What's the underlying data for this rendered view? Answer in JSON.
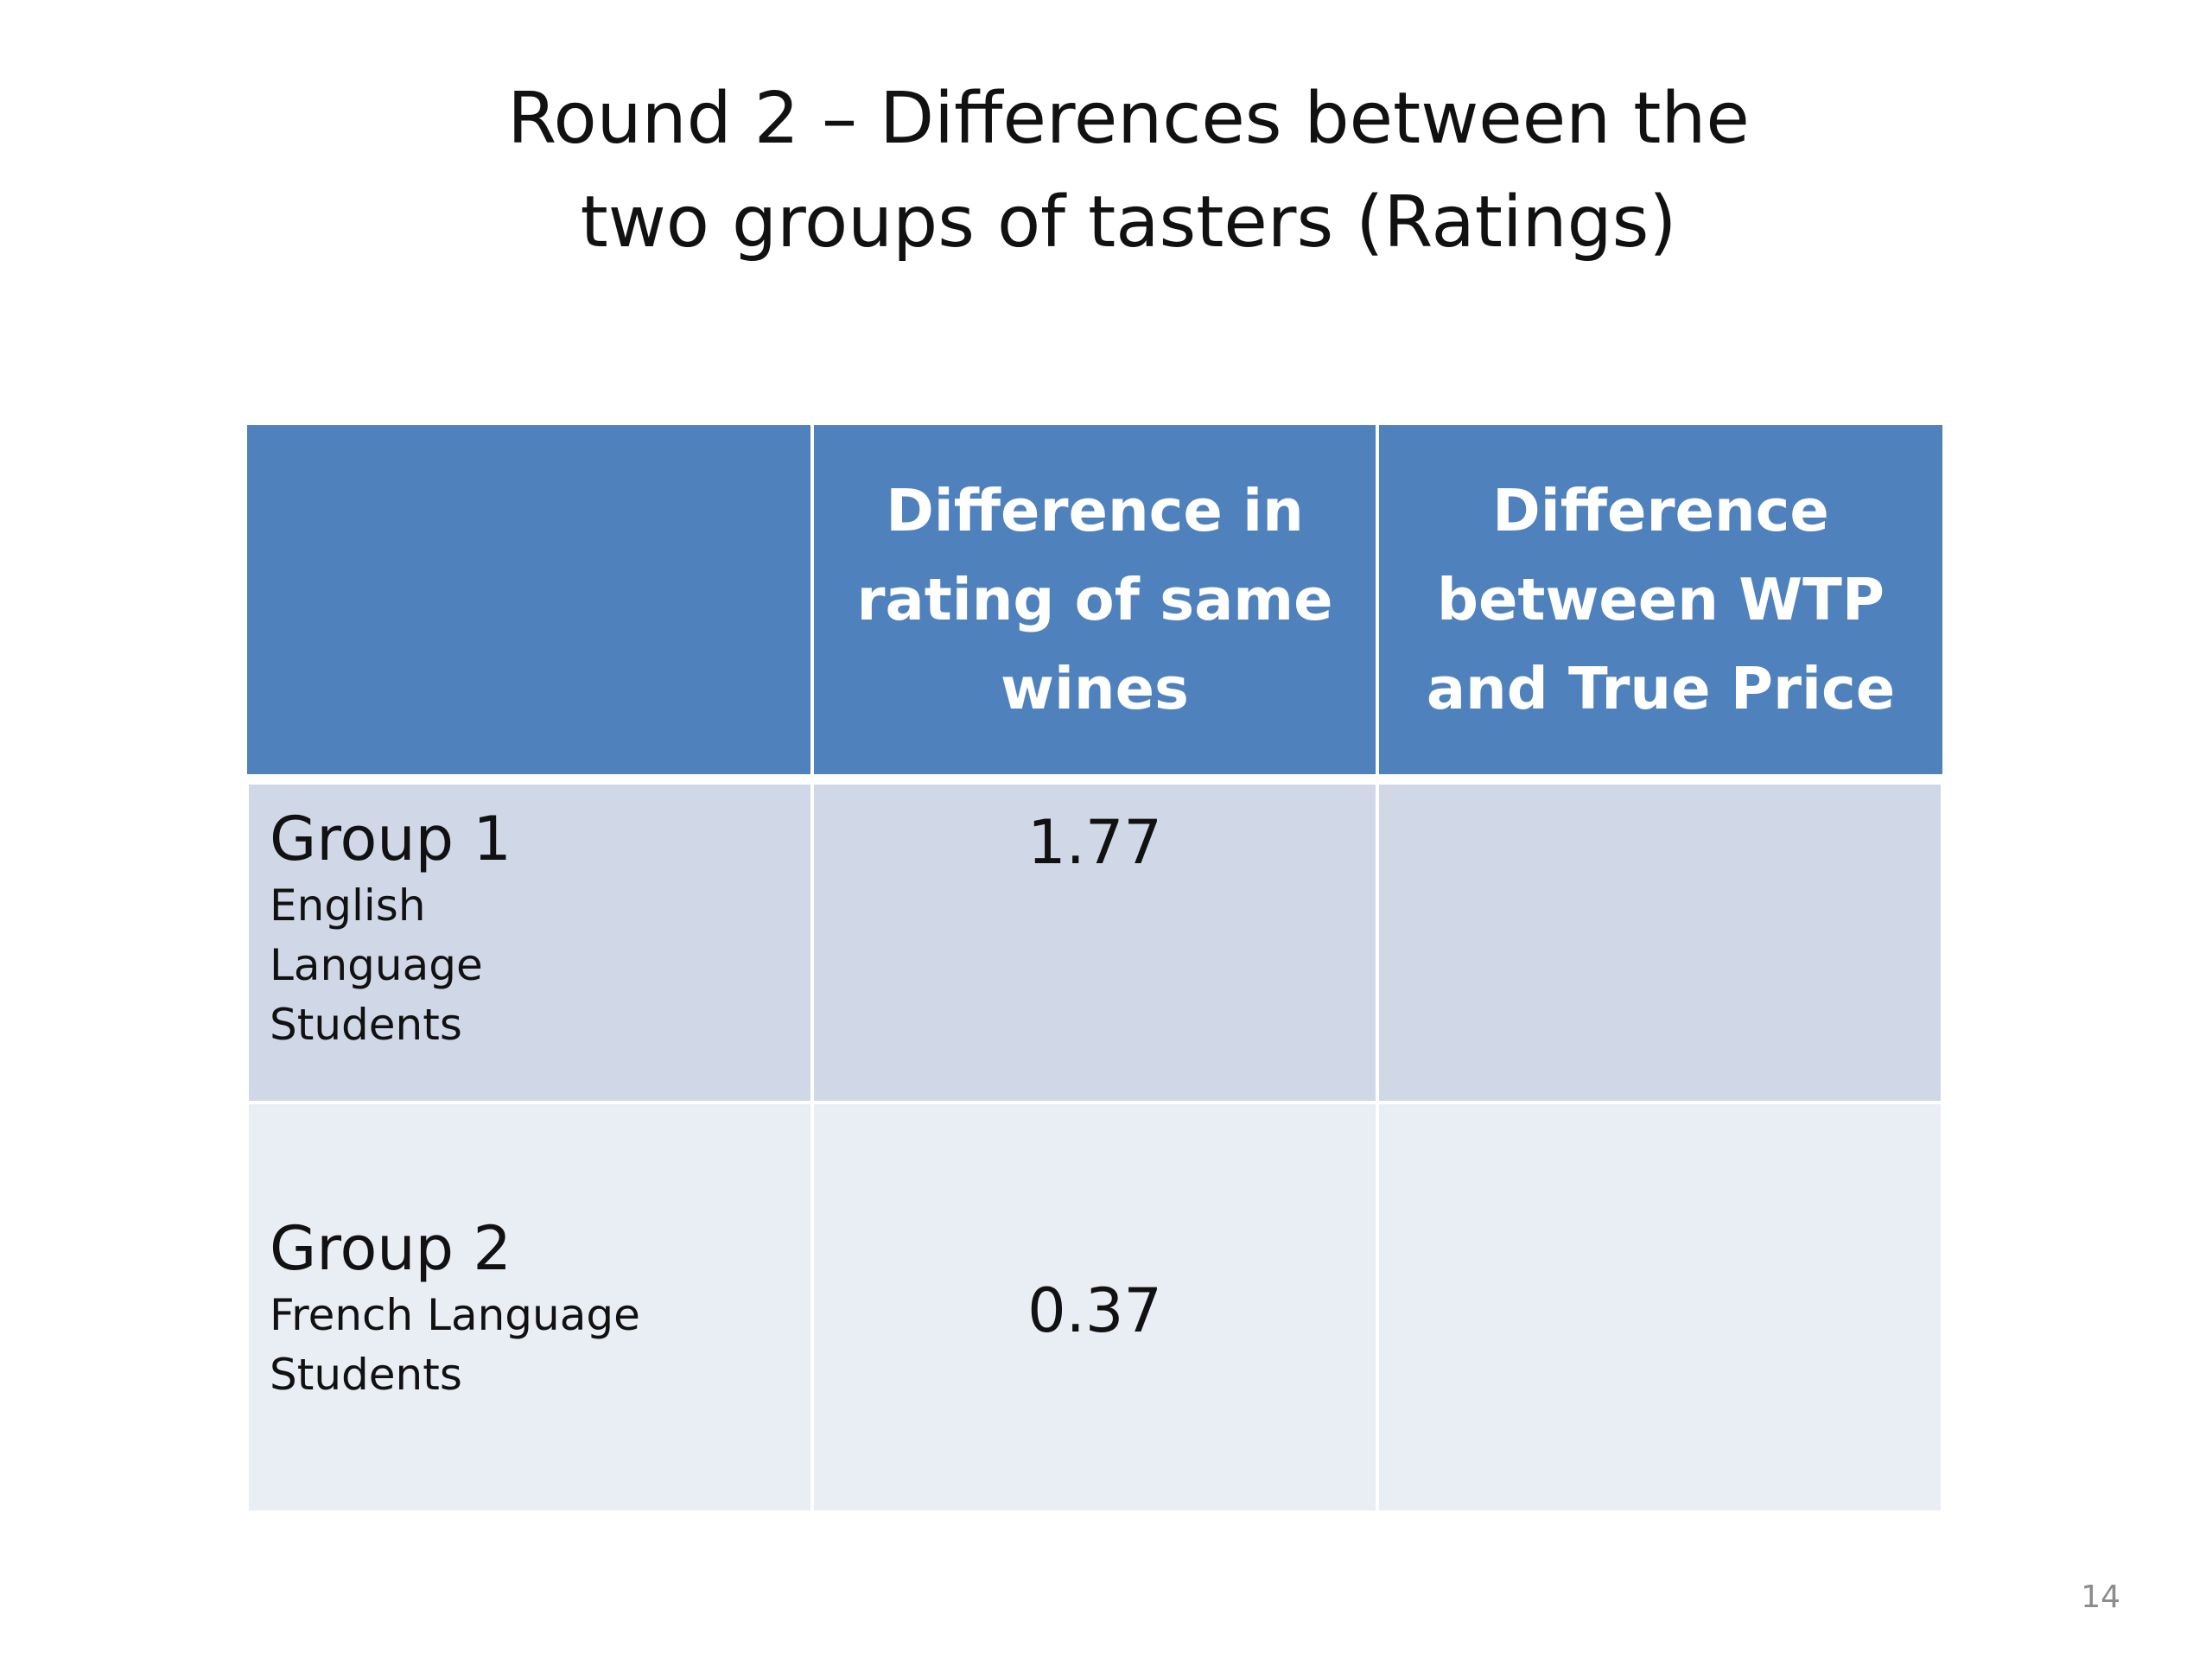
{
  "slide": {
    "title_line1": "Round 2 – Differences between the",
    "title_line2": "two groups of tasters (Ratings)",
    "page_number": "14"
  },
  "table": {
    "headers": [
      "",
      "Difference in rating of same wines",
      "Difference between WTP and True Price"
    ],
    "rows": [
      {
        "group": "Group 1",
        "description": "English Language Students",
        "rating_difference": "1.77",
        "wtp_difference": ""
      },
      {
        "group": "Group 2",
        "description": "French Language Students",
        "rating_difference": "0.37",
        "wtp_difference": ""
      }
    ]
  },
  "colors": {
    "header_fill": "#4f81bd",
    "row_odd_fill": "#d0d8e8",
    "row_even_fill": "#e9edf4"
  }
}
